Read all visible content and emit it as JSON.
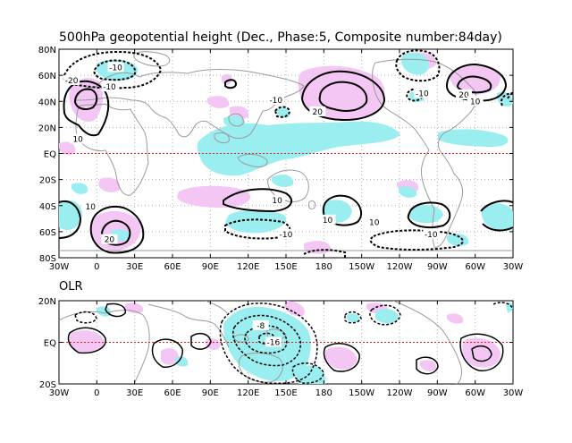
{
  "title": "500hPa geopotential height (Dec., Phase:5, Composite number:84day)",
  "olr_title": "OLR",
  "colors": {
    "positive_shading": "#f4c6f4",
    "negative_shading": "#9aeef0",
    "equator_line": "#e02020",
    "coast": "#9a9a9a",
    "grid": "#b0b0b0"
  },
  "upper_panel": {
    "lat_labels": [
      "80N",
      "60N",
      "40N",
      "20N",
      "EQ",
      "20S",
      "40S",
      "60S",
      "80S"
    ],
    "lon_labels": [
      "30W",
      "0",
      "30E",
      "60E",
      "90E",
      "120E",
      "150E",
      "180",
      "150W",
      "120W",
      "90W",
      "60W",
      "30W"
    ],
    "contour_labels": [
      {
        "text": "-10",
        "lon": 15,
        "lat": 66
      },
      {
        "text": "-20",
        "lon": -20,
        "lat": 56
      },
      {
        "text": "-10",
        "lon": 10,
        "lat": 51
      },
      {
        "text": "10",
        "lon": -15,
        "lat": 11
      },
      {
        "text": "20",
        "lon": 175,
        "lat": 32
      },
      {
        "text": "-10",
        "lon": 142,
        "lat": 41
      },
      {
        "text": "-10",
        "lon": 258,
        "lat": 46
      },
      {
        "text": "20",
        "lon": 291,
        "lat": 45
      },
      {
        "text": "10",
        "lon": 300,
        "lat": 40
      },
      {
        "text": "10",
        "lon": -5,
        "lat": -41
      },
      {
        "text": "20",
        "lon": 10,
        "lat": -66
      },
      {
        "text": "10",
        "lon": 143,
        "lat": -36
      },
      {
        "text": "-10",
        "lon": 150,
        "lat": -62
      },
      {
        "text": "10",
        "lon": 183,
        "lat": -51
      },
      {
        "text": "10",
        "lon": 220,
        "lat": -53
      },
      {
        "text": "-10",
        "lon": 265,
        "lat": -62
      }
    ]
  },
  "lower_panel": {
    "lat_labels": [
      "20N",
      "EQ",
      "20S"
    ],
    "lon_labels": [
      "30W",
      "0",
      "30E",
      "60E",
      "90E",
      "120E",
      "150E",
      "180",
      "150W",
      "120W",
      "90W",
      "60W",
      "30W"
    ],
    "contour_labels": [
      {
        "text": "-16",
        "lon": 140,
        "lat": 0
      },
      {
        "text": "-8",
        "lon": 130,
        "lat": 12
      }
    ]
  }
}
